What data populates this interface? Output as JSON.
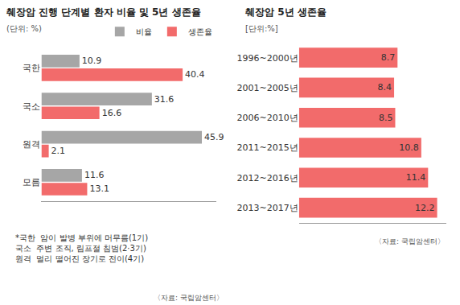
{
  "chart_data": [
    {
      "type": "bar",
      "orientation": "horizontal",
      "title": "췌장암 진행 단계별 환자 비율 및 5년 생존율",
      "subtitle": "(단위: %)",
      "categories": [
        "국한",
        "국소",
        "원격",
        "모름"
      ],
      "series": [
        {
          "name": "비율",
          "color": "#a6a6a6",
          "values": [
            10.9,
            31.6,
            45.9,
            11.6
          ]
        },
        {
          "name": "생존율",
          "color": "#f26b6b",
          "values": [
            40.4,
            16.6,
            2.1,
            13.1
          ]
        }
      ],
      "xlim": [
        0,
        50
      ],
      "data_labels": true,
      "tick_labels": "y",
      "grid": false,
      "legend": "top right",
      "annotations": [
        "*국한  암이 발병 부위에 머무름(1기)",
        "국소  주변 조직, 림프절 침범(2·3기)",
        "원격  멀리 떨어진 장기로 전이(4기)"
      ],
      "source": "〈자료: 국립암센터〉"
    },
    {
      "type": "bar",
      "orientation": "horizontal",
      "title": "췌장암 5년 생존율",
      "subtitle": "[단위:%]",
      "categories": [
        "1996~2000년",
        "2001~2005년",
        "2006~2010년",
        "2011~2015년",
        "2012~2016년",
        "2013~2017년"
      ],
      "values": [
        8.7,
        8.4,
        8.5,
        10.8,
        11.4,
        12.2
      ],
      "color": "#f26b6b",
      "xlim": [
        0,
        13
      ],
      "data_labels": true,
      "tick_labels": "y",
      "grid": false,
      "source": "〈자료: 국립암센터〉"
    }
  ]
}
